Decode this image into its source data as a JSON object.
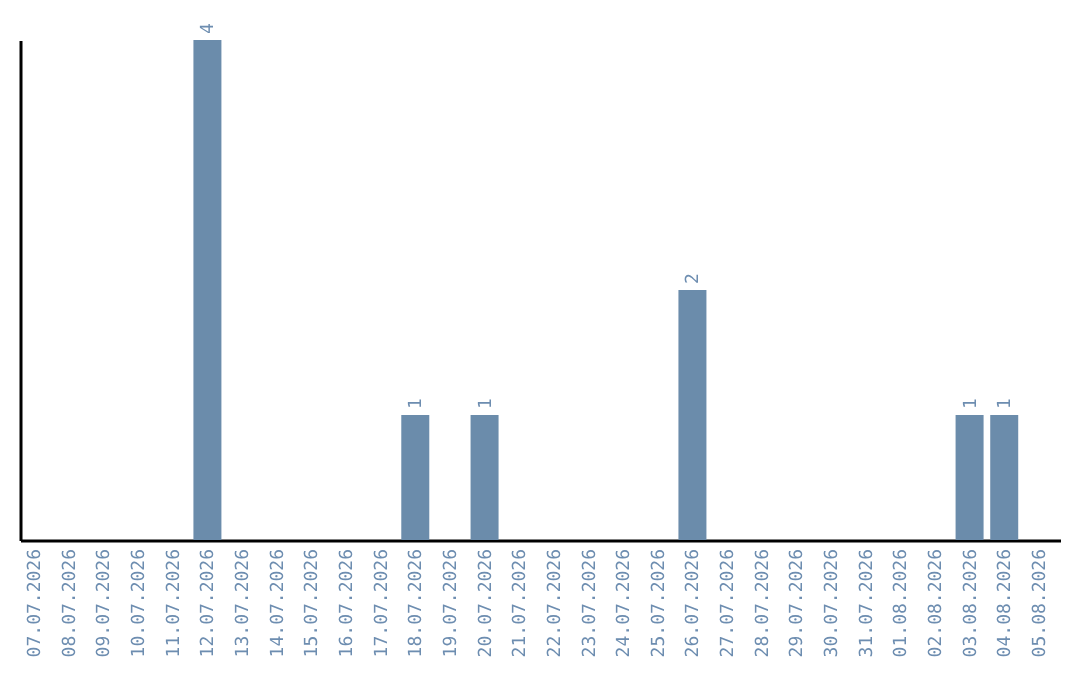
{
  "chart_data": {
    "type": "bar",
    "categories": [
      "07.07.2026",
      "08.07.2026",
      "09.07.2026",
      "10.07.2026",
      "11.07.2026",
      "12.07.2026",
      "13.07.2026",
      "14.07.2026",
      "15.07.2026",
      "16.07.2026",
      "17.07.2026",
      "18.07.2026",
      "19.07.2026",
      "20.07.2026",
      "21.07.2026",
      "22.07.2026",
      "23.07.2026",
      "24.07.2026",
      "25.07.2026",
      "26.07.2026",
      "27.07.2026",
      "28.07.2026",
      "29.07.2026",
      "30.07.2026",
      "31.07.2026",
      "01.08.2026",
      "02.08.2026",
      "03.08.2026",
      "04.08.2026",
      "05.08.2026"
    ],
    "values": [
      0,
      0,
      0,
      0,
      0,
      4,
      0,
      0,
      0,
      0,
      0,
      1,
      0,
      1,
      0,
      0,
      0,
      0,
      0,
      2,
      0,
      0,
      0,
      0,
      0,
      0,
      0,
      1,
      1,
      0
    ],
    "value_labels": [
      null,
      null,
      null,
      null,
      null,
      "4",
      null,
      null,
      null,
      null,
      null,
      "1",
      null,
      "1",
      null,
      null,
      null,
      null,
      null,
      "2",
      null,
      null,
      null,
      null,
      null,
      null,
      null,
      "1",
      "1",
      null
    ],
    "color": "#6b8cab",
    "tick_labels": "x"
  }
}
